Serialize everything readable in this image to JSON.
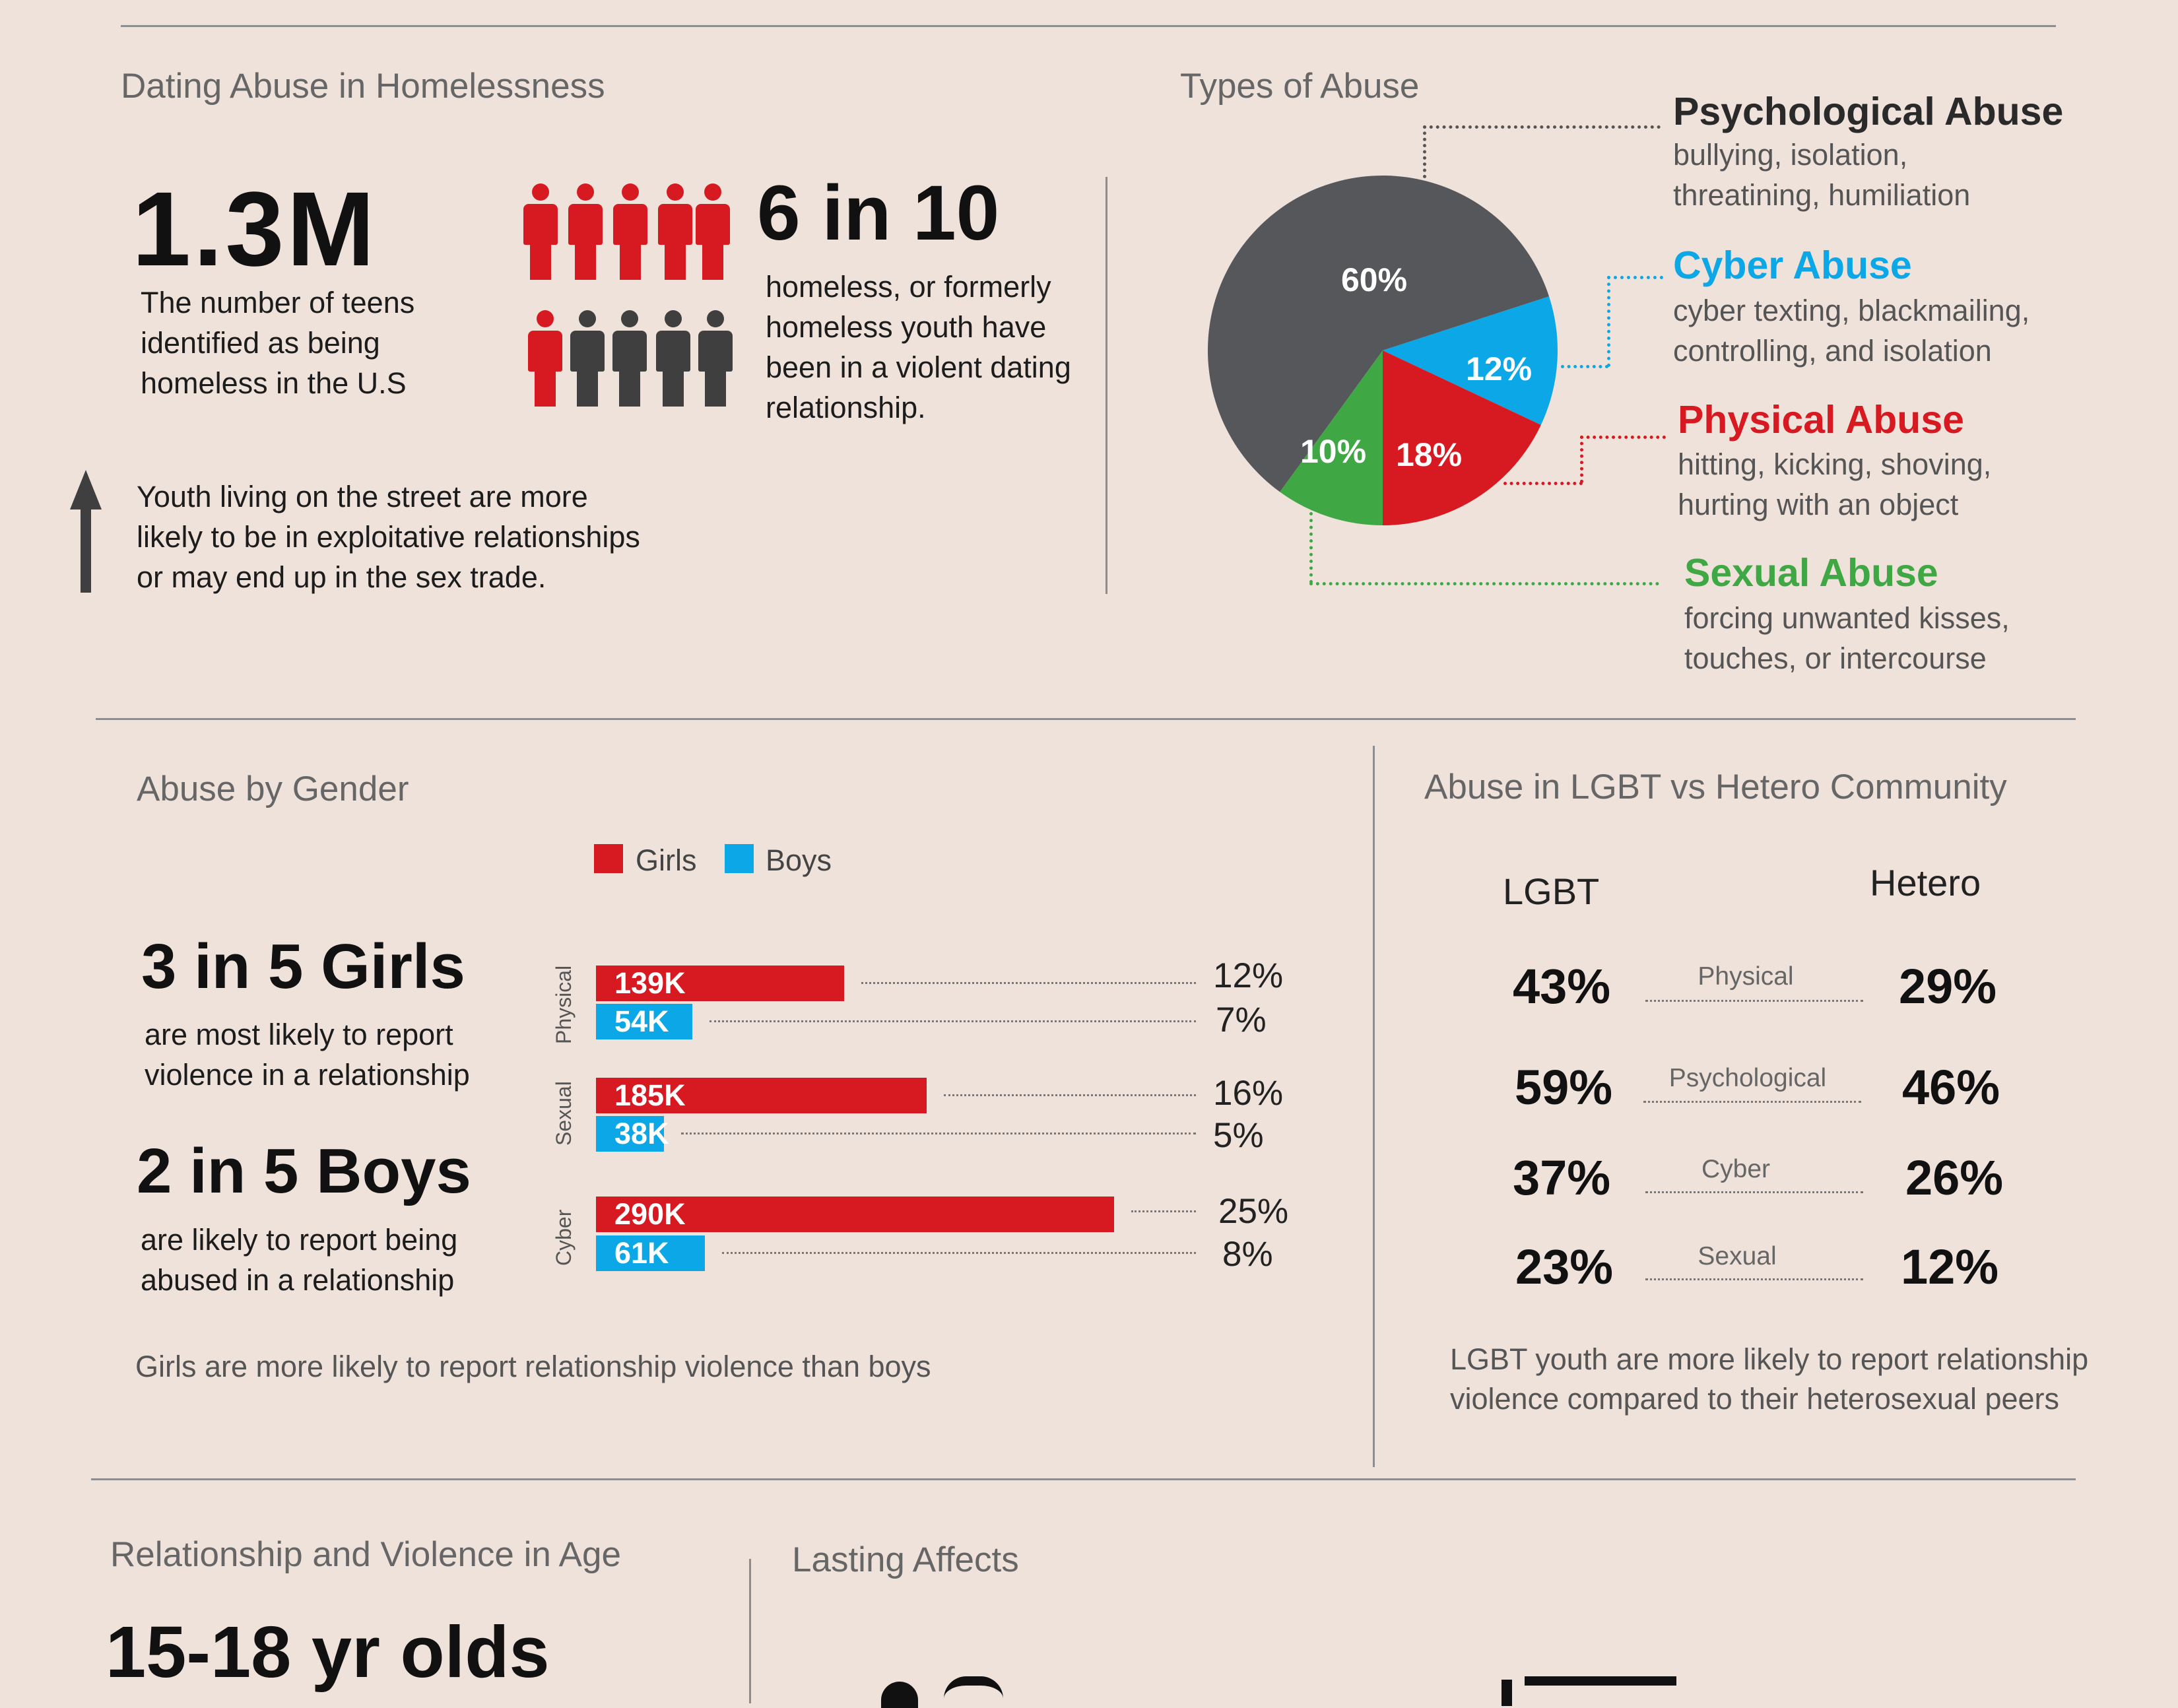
{
  "colors": {
    "background": "#efe2db",
    "red": "#d71a21",
    "blue": "#0ba7e6",
    "green": "#3fa845",
    "dark": "#55575b"
  },
  "section1": {
    "title": "Dating Abuse in Homelessness",
    "stat1_value": "1.3M",
    "stat1_text": [
      "The number of teens",
      "identified as being",
      "homeless in the U.S"
    ],
    "stat2_value": "6 in 10",
    "stat2_text": [
      "homeless, or formerly",
      "homeless youth have",
      "been in a violent dating",
      "relationship."
    ],
    "people": {
      "total": 10,
      "highlighted": 6,
      "icon": "person-icon"
    },
    "arrow_icon": "up-arrow-icon",
    "note_text": [
      "Youth living on the street are more",
      "likely to be in exploitative relationships",
      "or may end up in the sex trade."
    ]
  },
  "types": {
    "title": "Types of Abuse",
    "chart_data": {
      "type": "pie",
      "slices": [
        {
          "label": "Psychological Abuse",
          "value": 60,
          "display": "60%",
          "color": "#55575b"
        },
        {
          "label": "Cyber Abuse",
          "value": 12,
          "display": "12%",
          "color": "#0ba7e6"
        },
        {
          "label": "Physical Abuse",
          "value": 18,
          "display": "18%",
          "color": "#d71a21"
        },
        {
          "label": "Sexual Abuse",
          "value": 10,
          "display": "10%",
          "color": "#3fa845"
        }
      ]
    },
    "items": [
      {
        "name": "Psychological Abuse",
        "desc": [
          "bullying, isolation,",
          "threatining, humiliation"
        ],
        "color": "#2a2a2a"
      },
      {
        "name": "Cyber Abuse",
        "desc": [
          "cyber texting, blackmailing,",
          "controlling, and isolation"
        ],
        "color": "#0ba7e6"
      },
      {
        "name": "Physical Abuse",
        "desc": [
          "hitting, kicking, shoving,",
          "hurting with an object"
        ],
        "color": "#d71a21"
      },
      {
        "name": "Sexual Abuse",
        "desc": [
          "forcing unwanted kisses,",
          "touches, or intercourse"
        ],
        "color": "#3fa845"
      }
    ]
  },
  "gender": {
    "title": "Abuse by Gender",
    "legend": {
      "girls": "Girls",
      "boys": "Boys"
    },
    "girls_stat": "3 in 5 Girls",
    "girls_text": [
      "are most likely to report",
      "violence in a relationship"
    ],
    "boys_stat": "2 in 5 Boys",
    "boys_text": [
      "are likely to report being",
      "abused in a relationship"
    ],
    "footer": "Girls are more likely to report relationship violence than boys",
    "chart_data": {
      "type": "bar",
      "categories": [
        "Physical",
        "Sexual",
        "Cyber"
      ],
      "series": [
        {
          "name": "Girls",
          "values": [
            139000,
            185000,
            290000
          ],
          "labels": [
            "139K",
            "185K",
            "290K"
          ],
          "percents": [
            "12%",
            "16%",
            "25%"
          ]
        },
        {
          "name": "Boys",
          "values": [
            54000,
            38000,
            61000
          ],
          "labels": [
            "54K",
            "38K",
            "61K"
          ],
          "percents": [
            "7%",
            "5%",
            "8%"
          ]
        }
      ]
    }
  },
  "lgbt": {
    "title": "Abuse in LGBT vs Hetero Community",
    "col_lgbt": "LGBT",
    "col_hetero": "Hetero",
    "rows": [
      {
        "category": "Physical",
        "lgbt": "43%",
        "hetero": "29%"
      },
      {
        "category": "Psychological",
        "lgbt": "59%",
        "hetero": "46%"
      },
      {
        "category": "Cyber",
        "lgbt": "37%",
        "hetero": "26%"
      },
      {
        "category": "Sexual",
        "lgbt": "23%",
        "hetero": "12%"
      }
    ],
    "footer": [
      "LGBT youth are more likely to report relationship",
      "violence compared to their heterosexual peers"
    ]
  },
  "age": {
    "title": "Relationship and Violence in Age",
    "stat": "15-18 yr olds"
  },
  "lasting": {
    "title": "Lasting Affects"
  }
}
